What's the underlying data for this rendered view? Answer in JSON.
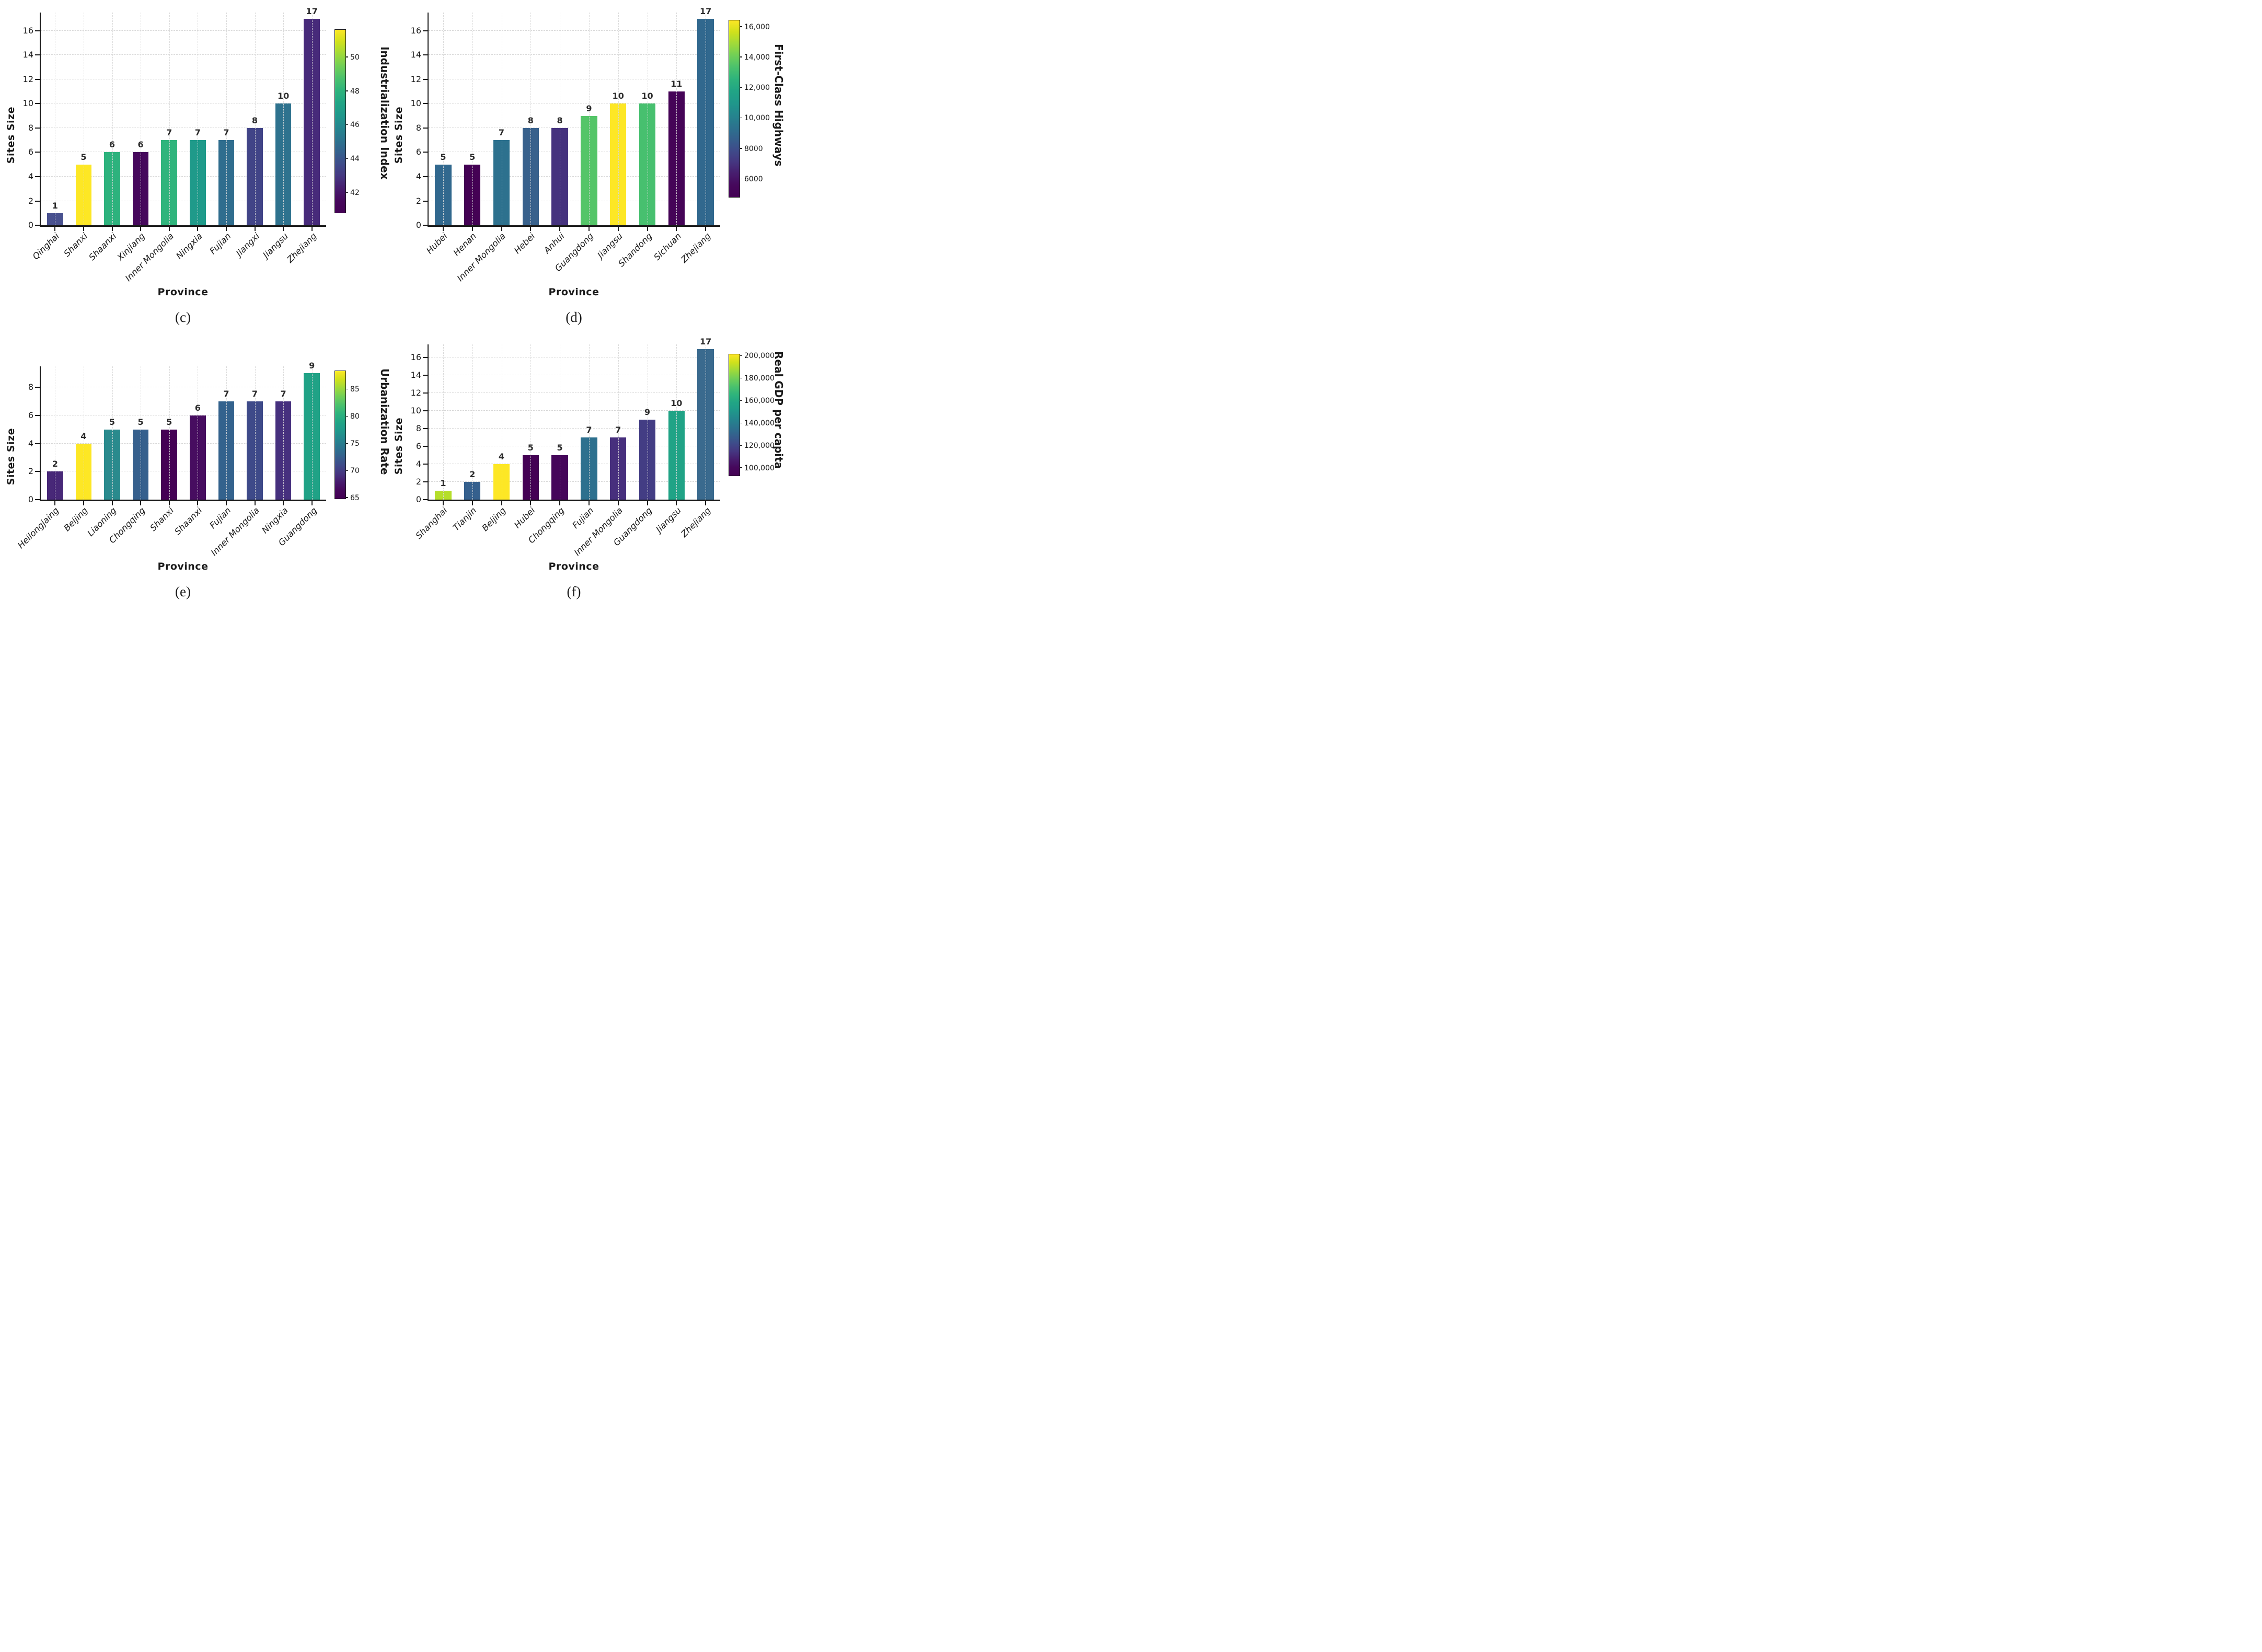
{
  "colormap_stops": [
    "#440154",
    "#46085c",
    "#471d6e",
    "#453781",
    "#3e4c8a",
    "#34618d",
    "#2b748e",
    "#24868e",
    "#1f988b",
    "#21a585",
    "#2eb37c",
    "#4ac16d",
    "#70cf57",
    "#9fda3a",
    "#cfe11c",
    "#fde725"
  ],
  "chart_data": [
    {
      "type": "bar",
      "caption": "(c)",
      "xlabel": "Province",
      "ylabel": "Sites Size",
      "categories": [
        "Qinghai",
        "Shanxi",
        "Shaanxi",
        "Xinjiang",
        "Inner Mongolia",
        "Ningxia",
        "Fujian",
        "Jiangxi",
        "Jiangsu",
        "Zhejiang"
      ],
      "values": [
        1,
        5,
        6,
        6,
        7,
        7,
        7,
        8,
        10,
        17
      ],
      "bar_colors": [
        "#49518f",
        "#fde725",
        "#2db27d",
        "#46085c",
        "#2fb47c",
        "#1f9a8a",
        "#2f6d8e",
        "#414487",
        "#2e728e",
        "#472a7a"
      ],
      "ylim": [
        0,
        17.5
      ],
      "yticks": [
        0,
        2,
        4,
        6,
        8,
        10,
        12,
        14,
        16
      ],
      "grid": true,
      "legend_position": "none",
      "colorbar": {
        "label": "Industrialization Index",
        "colormap": "viridis",
        "tick_values": [
          42,
          44,
          46,
          48,
          50
        ],
        "tick_labels": [
          "42",
          "44",
          "46",
          "48",
          "50"
        ],
        "range": [
          40.8,
          51.6
        ]
      }
    },
    {
      "type": "bar",
      "caption": "(d)",
      "xlabel": "Province",
      "ylabel": "Sites Size",
      "categories": [
        "Hubei",
        "Henan",
        "Inner Mongolia",
        "Hebei",
        "Anhui",
        "Guangdong",
        "Jiangsu",
        "Shandong",
        "Sichuan",
        "Zhejiang"
      ],
      "values": [
        5,
        5,
        7,
        8,
        8,
        9,
        10,
        10,
        11,
        17
      ],
      "bar_colors": [
        "#31688e",
        "#440154",
        "#2d718e",
        "#38618c",
        "#45327e",
        "#54c568",
        "#fde725",
        "#47c06f",
        "#450457",
        "#31688e"
      ],
      "ylim": [
        0,
        17.5
      ],
      "yticks": [
        0,
        2,
        4,
        6,
        8,
        10,
        12,
        14,
        16
      ],
      "grid": true,
      "legend_position": "none",
      "colorbar": {
        "label": "First-Class Highways",
        "colormap": "viridis",
        "tick_values": [
          6000,
          8000,
          10000,
          12000,
          14000,
          16000
        ],
        "tick_labels": [
          "6000",
          "8000",
          "10,000",
          "12,000",
          "14,000",
          "16,000"
        ],
        "range": [
          4800,
          16400
        ]
      }
    },
    {
      "type": "bar",
      "caption": "(e)",
      "xlabel": "Province",
      "ylabel": "Sites Size",
      "categories": [
        "Heilongjaing",
        "Beijing",
        "Liaoning",
        "Chongqing",
        "Shanxi",
        "Shaanxi",
        "Fujian",
        "Inner Mongolia",
        "Ningxia",
        "Guangdong"
      ],
      "values": [
        2,
        4,
        5,
        5,
        5,
        6,
        7,
        7,
        7,
        9
      ],
      "bar_colors": [
        "#482878",
        "#fde725",
        "#2a8a8d",
        "#36608d",
        "#440154",
        "#470d60",
        "#33628d",
        "#3e4a89",
        "#46307e",
        "#20a286"
      ],
      "ylim": [
        0,
        9.5
      ],
      "yticks": [
        0,
        2,
        4,
        6,
        8
      ],
      "grid": true,
      "legend_position": "none",
      "colorbar": {
        "label": "Urbanization Rate",
        "colormap": "viridis",
        "tick_values": [
          65,
          70,
          75,
          80,
          85
        ],
        "tick_labels": [
          "65",
          "70",
          "75",
          "80",
          "85"
        ],
        "range": [
          64.8,
          88.3
        ]
      }
    },
    {
      "type": "bar",
      "caption": "(f)",
      "xlabel": "Province",
      "ylabel": "Sites Size",
      "categories": [
        "Shanghai",
        "Tianjin",
        "Beijing",
        "Hubei",
        "Chongqing",
        "Fujian",
        "Inner Mongolia",
        "Guangdong",
        "Jiangsu",
        "Zhejiang"
      ],
      "values": [
        1,
        2,
        4,
        5,
        5,
        7,
        7,
        9,
        10,
        17
      ],
      "bar_colors": [
        "#b5de2b",
        "#35608d",
        "#fde725",
        "#440154",
        "#45065a",
        "#2d708e",
        "#472f7d",
        "#433d84",
        "#20a386",
        "#3a6a8e"
      ],
      "ylim": [
        0,
        17.5
      ],
      "yticks": [
        0,
        2,
        4,
        6,
        8,
        10,
        12,
        14,
        16
      ],
      "grid": true,
      "legend_position": "none",
      "colorbar": {
        "label": "Real GDP per capita",
        "colormap": "viridis",
        "tick_values": [
          100000,
          120000,
          140000,
          160000,
          180000,
          200000
        ],
        "tick_labels": [
          "100,000",
          "120,000",
          "140,000",
          "160,000",
          "180,000",
          "200,000"
        ],
        "range": [
          93000,
          201000
        ]
      }
    }
  ]
}
